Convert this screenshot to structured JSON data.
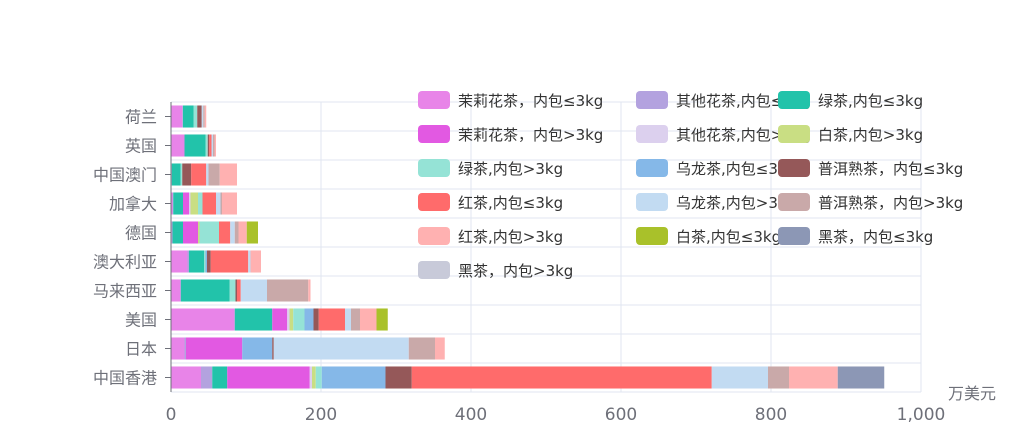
{
  "chart_data": {
    "type": "bar",
    "orientation": "horizontal",
    "stacked": true,
    "xlabel": "",
    "x_unit": "万美元",
    "xlim": [
      0,
      1000
    ],
    "x_ticks": [
      "0",
      "200",
      "400",
      "600",
      "800",
      "1,000"
    ],
    "grid": true,
    "legend_position": "top-right",
    "categories": [
      "中国香港",
      "日本",
      "美国",
      "马来西亚",
      "澳大利亚",
      "德国",
      "加拿大",
      "中国澳门",
      "英国",
      "荷兰"
    ],
    "series": [
      {
        "name": "茉莉花茶，内包≤3kg",
        "color": "#e884e8",
        "values": [
          40,
          18,
          85,
          13,
          22,
          1,
          2,
          1,
          18,
          15
        ]
      },
      {
        "name": "其他花茶,内包≤3kg",
        "color": "#b3a2df",
        "values": [
          15,
          2,
          0,
          0,
          2,
          1,
          1,
          0,
          0,
          1
        ]
      },
      {
        "name": "绿茶,内包≤3kg",
        "color": "#22c3aa",
        "values": [
          20,
          0,
          50,
          65,
          20,
          14,
          13,
          12,
          28,
          14
        ]
      },
      {
        "name": "茉莉花茶，内包>3kg",
        "color": "#e259e2",
        "values": [
          110,
          75,
          20,
          0,
          0,
          20,
          8,
          0,
          0,
          0
        ]
      },
      {
        "name": "其他花茶,内包>3kg",
        "color": "#dcd0ee",
        "values": [
          3,
          0,
          3,
          0,
          0,
          0,
          2,
          0,
          0,
          0
        ]
      },
      {
        "name": "白茶,内包>3kg",
        "color": "#c9de83",
        "values": [
          5,
          0,
          5,
          0,
          0,
          2,
          10,
          0,
          0,
          0
        ]
      },
      {
        "name": "绿茶,内包>3kg",
        "color": "#95e3d6",
        "values": [
          8,
          0,
          15,
          8,
          2,
          26,
          6,
          2,
          3,
          5
        ]
      },
      {
        "name": "乌龙茶,内包≤3kg",
        "color": "#85b8e8",
        "values": [
          85,
          40,
          12,
          0,
          2,
          0,
          0,
          0,
          0,
          0
        ]
      },
      {
        "name": "普洱熟茶，内包≤3kg",
        "color": "#955859",
        "values": [
          35,
          2,
          7,
          2,
          5,
          0,
          0,
          12,
          2,
          6
        ]
      },
      {
        "name": "红茶,内包≤3kg",
        "color": "#ff6b6b",
        "values": [
          400,
          0,
          35,
          5,
          50,
          15,
          18,
          20,
          3,
          0
        ]
      },
      {
        "name": "乌龙茶,内包>3kg",
        "color": "#c2dbf2",
        "values": [
          75,
          180,
          8,
          35,
          3,
          6,
          6,
          3,
          2,
          2
        ]
      },
      {
        "name": "普洱熟茶，内包>3kg",
        "color": "#c9a9a9",
        "values": [
          28,
          35,
          12,
          55,
          0,
          5,
          2,
          15,
          2,
          2
        ]
      },
      {
        "name": "红茶,内包>3kg",
        "color": "#ffb1b1",
        "values": [
          65,
          13,
          22,
          3,
          14,
          11,
          20,
          23,
          2,
          2
        ]
      },
      {
        "name": "白茶,内包≤3kg",
        "color": "#a9c12a",
        "values": [
          0,
          0,
          15,
          0,
          0,
          15,
          0,
          0,
          0,
          0
        ]
      },
      {
        "name": "黑茶，内包≤3kg",
        "color": "#8c97b5",
        "values": [
          62,
          0,
          0,
          0,
          0,
          0,
          0,
          0,
          0,
          0
        ]
      },
      {
        "name": "黑茶，内包>3kg",
        "color": "#c8cad9",
        "values": [
          0,
          0,
          0,
          0,
          0,
          0,
          0,
          0,
          0,
          0
        ]
      }
    ]
  }
}
